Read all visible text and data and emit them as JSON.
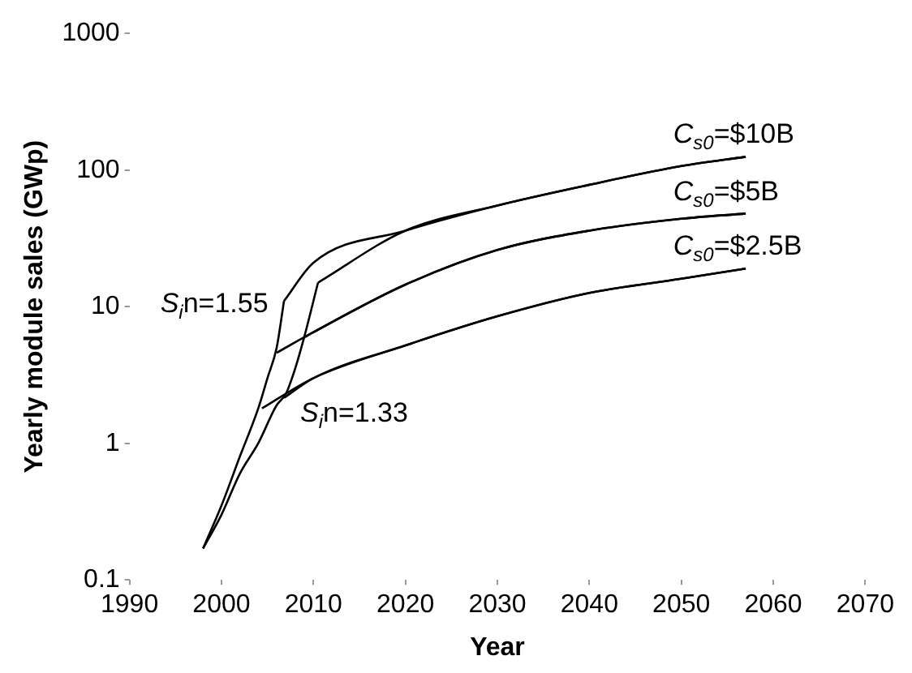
{
  "chart_data": {
    "type": "line",
    "xlabel": "Year",
    "ylabel": "Yearly module sales (GWp)",
    "log": "y",
    "xlim": [
      1990,
      2070
    ],
    "xticks": [
      1990,
      2000,
      2010,
      2020,
      2030,
      2040,
      2050,
      2060,
      2070
    ],
    "ylim": [
      0.1,
      1000
    ],
    "yticks": [
      0.1,
      1,
      10,
      100,
      1000
    ],
    "marker": "none",
    "legend": false,
    "series": [
      {
        "color": "#000000",
        "x": [
          1998,
          2000,
          2002,
          2004,
          2005,
          2006,
          2006.8
        ],
        "values": [
          0.17,
          0.35,
          0.8,
          1.8,
          3,
          5,
          11
        ]
      },
      {
        "color": "#000000",
        "x": [
          1998,
          2000,
          2002,
          2004,
          2006,
          2007,
          2008,
          2009,
          2010.5
        ],
        "values": [
          0.17,
          0.3,
          0.6,
          1.0,
          1.9,
          2.3,
          3.5,
          6,
          15
        ]
      },
      {
        "color": "#000000",
        "x": [
          2006.8,
          2010,
          2020,
          2030,
          2040,
          2050,
          2057
        ],
        "values": [
          11,
          21,
          36,
          55,
          78,
          107,
          125
        ]
      },
      {
        "color": "#000000",
        "x": [
          2010.5,
          2020,
          2030,
          2040,
          2050,
          2057
        ],
        "values": [
          15,
          36,
          55,
          78,
          107,
          125
        ]
      },
      {
        "color": "#000000",
        "x": [
          2006,
          2010,
          2020,
          2030,
          2040,
          2050,
          2057
        ],
        "values": [
          4.6,
          6.5,
          14.5,
          26,
          36,
          44,
          48
        ]
      },
      {
        "color": "#000000",
        "x": [
          2009.1,
          2010,
          2020,
          2030,
          2040,
          2050,
          2057
        ],
        "values": [
          6,
          6.5,
          14.5,
          26,
          36,
          44,
          48
        ]
      },
      {
        "color": "#000000",
        "x": [
          2004.4,
          2010,
          2020,
          2030,
          2040,
          2050,
          2057
        ],
        "values": [
          1.8,
          3.0,
          5.2,
          8.5,
          12.6,
          16,
          19
        ]
      },
      {
        "color": "#000000",
        "x": [
          2006.8,
          2010,
          2020,
          2030,
          2040,
          2050,
          2057
        ],
        "values": [
          2.15,
          3.0,
          5.2,
          8.5,
          12.6,
          16,
          19
        ]
      }
    ],
    "annotations": [
      "C$_{s0}$=$10B",
      "C$_{s0}$=$5B",
      "C$_{s0}$=$2.5B",
      "S$_{i}$n=1.55",
      "S$_{i}$n=1.33"
    ]
  }
}
